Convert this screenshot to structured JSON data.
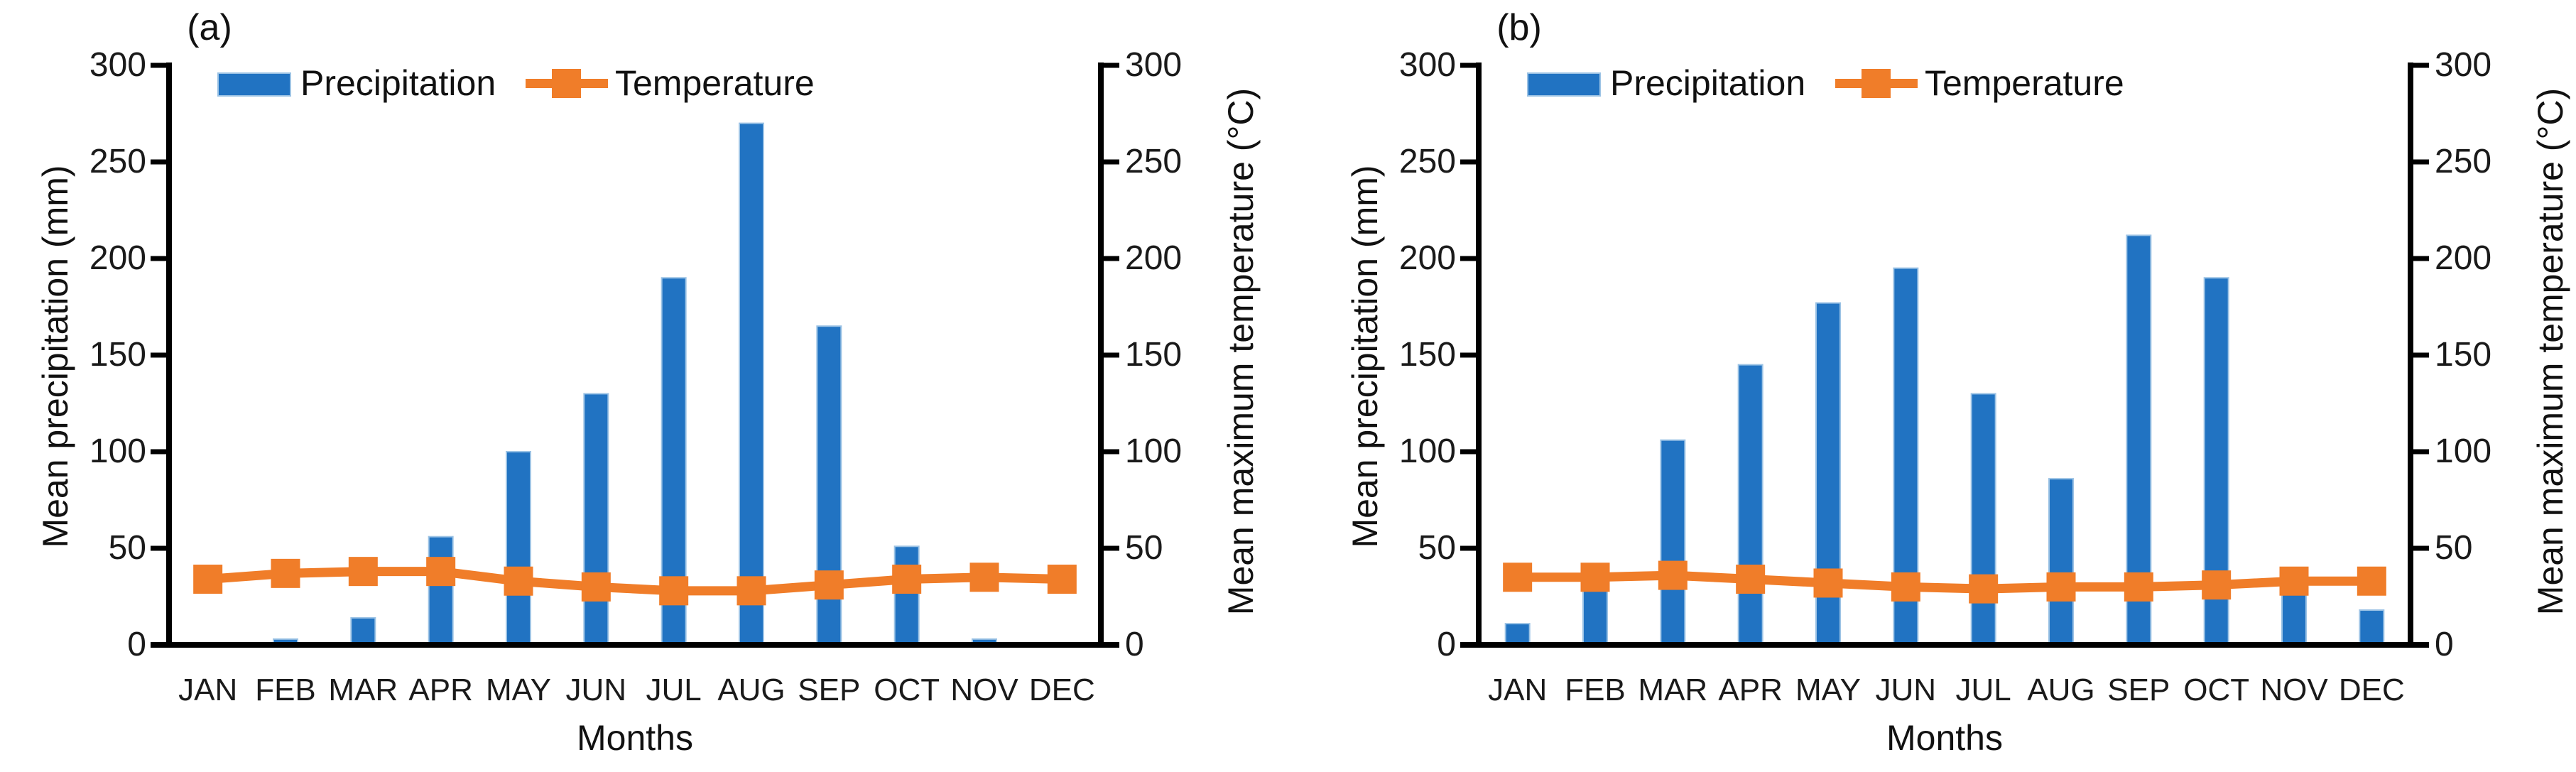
{
  "figure": {
    "description": "Two side-by-side climograph combo charts of monthly precipitation bars and mean maximum temperature line",
    "background": "#FFFFFF"
  },
  "colors": {
    "bar_fill": "#2173C2",
    "bar_border": "#9CC3E5",
    "line": "#F07D29",
    "axis": "#000000",
    "text": "#1A1A1A"
  },
  "chart_data": [
    {
      "type": "combo",
      "title": "(a)",
      "categories": [
        "JAN",
        "FEB",
        "MAR",
        "APR",
        "MAY",
        "JUN",
        "JUL",
        "AUG",
        "SEP",
        "OCT",
        "NOV",
        "DEC"
      ],
      "series": [
        {
          "name": "Precipitation",
          "type": "bar",
          "axis": "left",
          "color": "#2173C2",
          "values": [
            1,
            3,
            14,
            56,
            100,
            130,
            190,
            270,
            165,
            51,
            3,
            1
          ]
        },
        {
          "name": "Temperature",
          "type": "line",
          "axis": "right",
          "color": "#F07D29",
          "marker": "square",
          "values": [
            34,
            37,
            38,
            38,
            33,
            30,
            28,
            28,
            31,
            34,
            35,
            34
          ]
        }
      ],
      "xlabel": "Months",
      "ylabel_left": "Mean precipitation (mm)",
      "ylabel_right": "Mean maximum temperature (°C)",
      "ylim": [
        0,
        300
      ],
      "ytick_step": 50,
      "grid": false,
      "legend_position": "top"
    },
    {
      "type": "combo",
      "title": "(b)",
      "categories": [
        "JAN",
        "FEB",
        "MAR",
        "APR",
        "MAY",
        "JUN",
        "JUL",
        "AUG",
        "SEP",
        "OCT",
        "NOV",
        "DEC"
      ],
      "series": [
        {
          "name": "Precipitation",
          "type": "bar",
          "axis": "left",
          "color": "#2173C2",
          "values": [
            11,
            35,
            106,
            145,
            177,
            195,
            130,
            86,
            212,
            190,
            30,
            18
          ]
        },
        {
          "name": "Temperature",
          "type": "line",
          "axis": "right",
          "color": "#F07D29",
          "marker": "square",
          "values": [
            35,
            35,
            36,
            34,
            32,
            30,
            29,
            30,
            30,
            31,
            33,
            33
          ]
        }
      ],
      "xlabel": "Months",
      "ylabel_left": "Mean precipitation (mm)",
      "ylabel_right": "Mean maximum temperature (°C)",
      "ylim": [
        0,
        300
      ],
      "ytick_step": 50,
      "grid": false,
      "legend_position": "top"
    }
  ]
}
